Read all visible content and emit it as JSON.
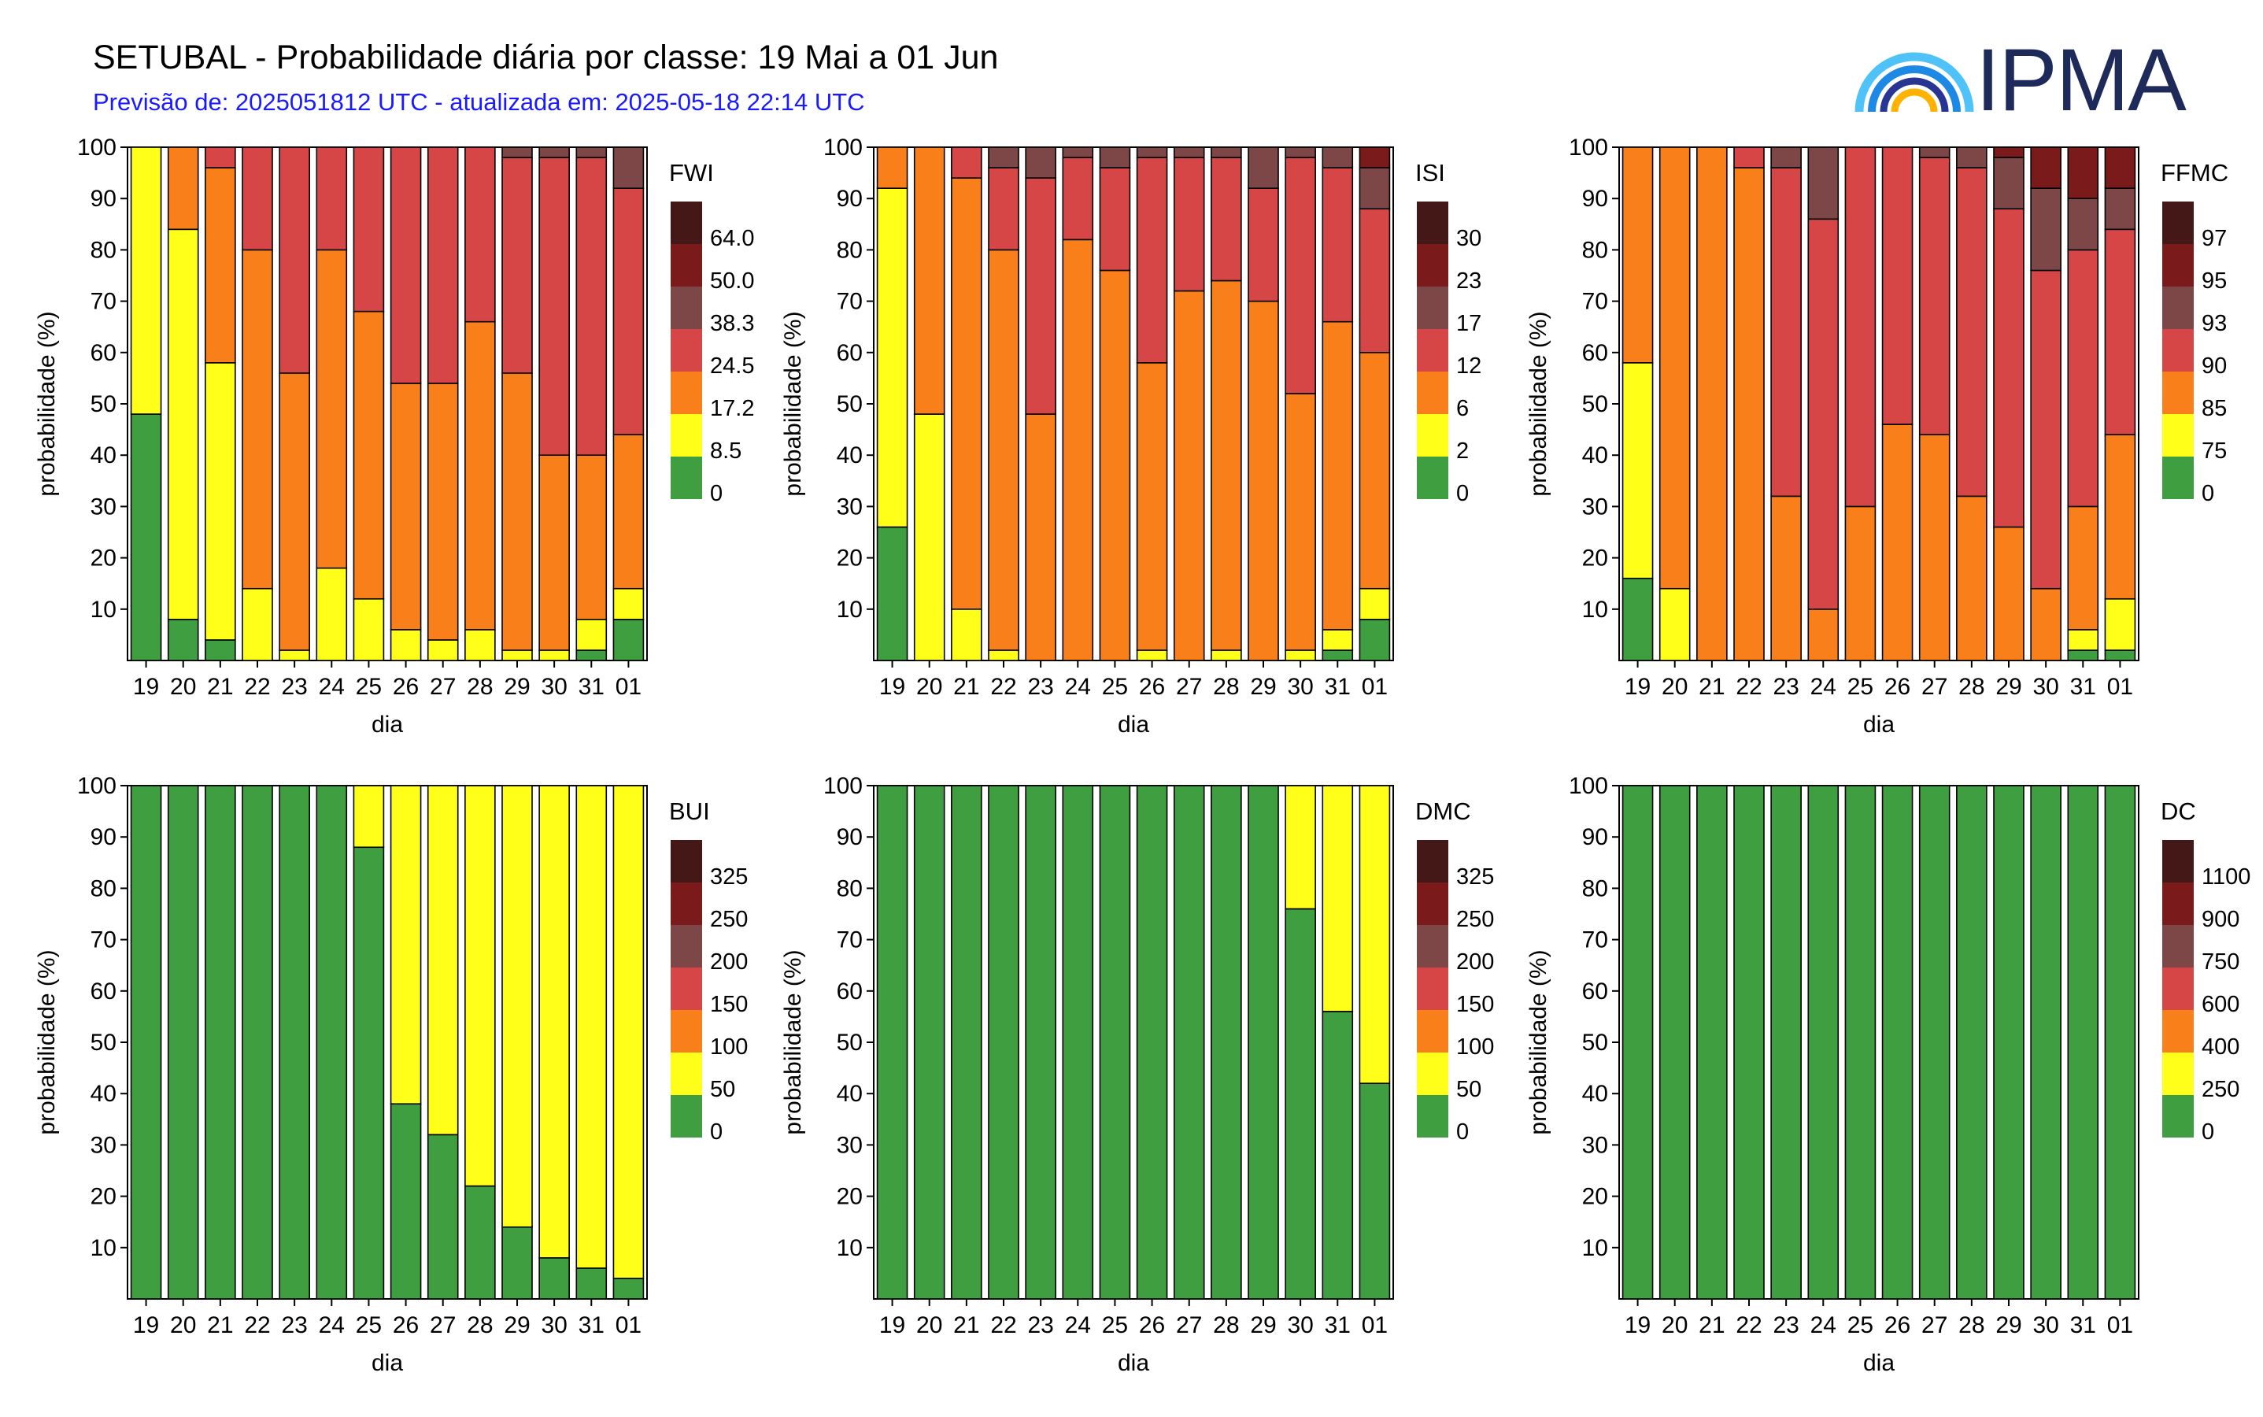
{
  "header": {
    "title": "SETUBAL - Probabilidade diária por classe: 19 Mai a 01 Jun",
    "subtitle": "Previsão de: 2025051812 UTC - atualizada em: 2025-05-18 22:14 UTC",
    "logo_text": "IPMA"
  },
  "colors": {
    "classes": [
      "#3f9e3f",
      "#ffff1a",
      "#f97f1b",
      "#d64646",
      "#7d4747",
      "#7a1a1a",
      "#451818"
    ]
  },
  "chart_data": [
    {
      "type": "bar",
      "stacked": true,
      "index": "FWI",
      "legend_labels": [
        "0",
        "8.5",
        "17.2",
        "24.5",
        "38.3",
        "50.0",
        "64.0"
      ],
      "xlabel": "dia",
      "ylabel": "probabilidade (%)",
      "ylim": [
        0,
        100
      ],
      "yticks": [
        10,
        20,
        30,
        40,
        50,
        60,
        70,
        80,
        90,
        100
      ],
      "categories": [
        "19",
        "20",
        "21",
        "22",
        "23",
        "24",
        "25",
        "26",
        "27",
        "28",
        "29",
        "30",
        "31",
        "01"
      ],
      "cumulative": [
        [
          48,
          100,
          100,
          100,
          100,
          100,
          100
        ],
        [
          8,
          84,
          100,
          100,
          100,
          100,
          100
        ],
        [
          4,
          58,
          96,
          100,
          100,
          100,
          100
        ],
        [
          0,
          14,
          80,
          100,
          100,
          100,
          100
        ],
        [
          0,
          2,
          56,
          100,
          100,
          100,
          100
        ],
        [
          0,
          18,
          80,
          100,
          100,
          100,
          100
        ],
        [
          0,
          12,
          68,
          100,
          100,
          100,
          100
        ],
        [
          0,
          6,
          54,
          100,
          100,
          100,
          100
        ],
        [
          0,
          4,
          54,
          100,
          100,
          100,
          100
        ],
        [
          0,
          6,
          66,
          100,
          100,
          100,
          100
        ],
        [
          0,
          2,
          56,
          98,
          100,
          100,
          100
        ],
        [
          0,
          2,
          40,
          98,
          100,
          100,
          100
        ],
        [
          2,
          8,
          40,
          98,
          100,
          100,
          100
        ],
        [
          8,
          14,
          44,
          92,
          100,
          100,
          100
        ]
      ]
    },
    {
      "type": "bar",
      "stacked": true,
      "index": "ISI",
      "legend_labels": [
        "0",
        "2",
        "6",
        "12",
        "17",
        "23",
        "30"
      ],
      "xlabel": "dia",
      "ylabel": "probabilidade (%)",
      "ylim": [
        0,
        100
      ],
      "yticks": [
        10,
        20,
        30,
        40,
        50,
        60,
        70,
        80,
        90,
        100
      ],
      "categories": [
        "19",
        "20",
        "21",
        "22",
        "23",
        "24",
        "25",
        "26",
        "27",
        "28",
        "29",
        "30",
        "31",
        "01"
      ],
      "cumulative": [
        [
          26,
          92,
          100,
          100,
          100,
          100,
          100
        ],
        [
          0,
          48,
          100,
          100,
          100,
          100,
          100
        ],
        [
          0,
          10,
          94,
          100,
          100,
          100,
          100
        ],
        [
          0,
          2,
          80,
          96,
          100,
          100,
          100
        ],
        [
          0,
          0,
          48,
          94,
          100,
          100,
          100
        ],
        [
          0,
          0,
          82,
          98,
          100,
          100,
          100
        ],
        [
          0,
          0,
          76,
          96,
          100,
          100,
          100
        ],
        [
          0,
          2,
          58,
          98,
          100,
          100,
          100
        ],
        [
          0,
          0,
          72,
          98,
          100,
          100,
          100
        ],
        [
          0,
          2,
          74,
          98,
          100,
          100,
          100
        ],
        [
          0,
          0,
          70,
          92,
          100,
          100,
          100
        ],
        [
          0,
          2,
          52,
          98,
          100,
          100,
          100
        ],
        [
          2,
          6,
          66,
          96,
          100,
          100,
          100
        ],
        [
          8,
          14,
          60,
          88,
          96,
          100,
          100
        ]
      ]
    },
    {
      "type": "bar",
      "stacked": true,
      "index": "FFMC",
      "legend_labels": [
        "0",
        "75",
        "85",
        "90",
        "93",
        "95",
        "97"
      ],
      "xlabel": "dia",
      "ylabel": "probabilidade (%)",
      "ylim": [
        0,
        100
      ],
      "yticks": [
        10,
        20,
        30,
        40,
        50,
        60,
        70,
        80,
        90,
        100
      ],
      "categories": [
        "19",
        "20",
        "21",
        "22",
        "23",
        "24",
        "25",
        "26",
        "27",
        "28",
        "29",
        "30",
        "31",
        "01"
      ],
      "cumulative": [
        [
          16,
          58,
          100,
          100,
          100,
          100,
          100
        ],
        [
          0,
          14,
          100,
          100,
          100,
          100,
          100
        ],
        [
          0,
          0,
          100,
          100,
          100,
          100,
          100
        ],
        [
          0,
          0,
          96,
          100,
          100,
          100,
          100
        ],
        [
          0,
          0,
          32,
          96,
          100,
          100,
          100
        ],
        [
          0,
          0,
          10,
          86,
          100,
          100,
          100
        ],
        [
          0,
          0,
          30,
          100,
          100,
          100,
          100
        ],
        [
          0,
          0,
          46,
          100,
          100,
          100,
          100
        ],
        [
          0,
          0,
          44,
          98,
          100,
          100,
          100
        ],
        [
          0,
          0,
          32,
          96,
          100,
          100,
          100
        ],
        [
          0,
          0,
          26,
          88,
          98,
          100,
          100
        ],
        [
          0,
          0,
          14,
          76,
          92,
          100,
          100
        ],
        [
          2,
          6,
          30,
          80,
          90,
          100,
          100
        ],
        [
          2,
          12,
          44,
          84,
          92,
          100,
          100
        ]
      ]
    },
    {
      "type": "bar",
      "stacked": true,
      "index": "BUI",
      "legend_labels": [
        "0",
        "50",
        "100",
        "150",
        "200",
        "250",
        "325"
      ],
      "xlabel": "dia",
      "ylabel": "probabilidade (%)",
      "ylim": [
        0,
        100
      ],
      "yticks": [
        10,
        20,
        30,
        40,
        50,
        60,
        70,
        80,
        90,
        100
      ],
      "categories": [
        "19",
        "20",
        "21",
        "22",
        "23",
        "24",
        "25",
        "26",
        "27",
        "28",
        "29",
        "30",
        "31",
        "01"
      ],
      "cumulative": [
        [
          100,
          100,
          100,
          100,
          100,
          100,
          100
        ],
        [
          100,
          100,
          100,
          100,
          100,
          100,
          100
        ],
        [
          100,
          100,
          100,
          100,
          100,
          100,
          100
        ],
        [
          100,
          100,
          100,
          100,
          100,
          100,
          100
        ],
        [
          100,
          100,
          100,
          100,
          100,
          100,
          100
        ],
        [
          100,
          100,
          100,
          100,
          100,
          100,
          100
        ],
        [
          88,
          100,
          100,
          100,
          100,
          100,
          100
        ],
        [
          38,
          100,
          100,
          100,
          100,
          100,
          100
        ],
        [
          32,
          100,
          100,
          100,
          100,
          100,
          100
        ],
        [
          22,
          100,
          100,
          100,
          100,
          100,
          100
        ],
        [
          14,
          100,
          100,
          100,
          100,
          100,
          100
        ],
        [
          8,
          100,
          100,
          100,
          100,
          100,
          100
        ],
        [
          6,
          100,
          100,
          100,
          100,
          100,
          100
        ],
        [
          4,
          100,
          100,
          100,
          100,
          100,
          100
        ]
      ]
    },
    {
      "type": "bar",
      "stacked": true,
      "index": "DMC",
      "legend_labels": [
        "0",
        "50",
        "100",
        "150",
        "200",
        "250",
        "325"
      ],
      "xlabel": "dia",
      "ylabel": "probabilidade (%)",
      "ylim": [
        0,
        100
      ],
      "yticks": [
        10,
        20,
        30,
        40,
        50,
        60,
        70,
        80,
        90,
        100
      ],
      "categories": [
        "19",
        "20",
        "21",
        "22",
        "23",
        "24",
        "25",
        "26",
        "27",
        "28",
        "29",
        "30",
        "31",
        "01"
      ],
      "cumulative": [
        [
          100,
          100,
          100,
          100,
          100,
          100,
          100
        ],
        [
          100,
          100,
          100,
          100,
          100,
          100,
          100
        ],
        [
          100,
          100,
          100,
          100,
          100,
          100,
          100
        ],
        [
          100,
          100,
          100,
          100,
          100,
          100,
          100
        ],
        [
          100,
          100,
          100,
          100,
          100,
          100,
          100
        ],
        [
          100,
          100,
          100,
          100,
          100,
          100,
          100
        ],
        [
          100,
          100,
          100,
          100,
          100,
          100,
          100
        ],
        [
          100,
          100,
          100,
          100,
          100,
          100,
          100
        ],
        [
          100,
          100,
          100,
          100,
          100,
          100,
          100
        ],
        [
          100,
          100,
          100,
          100,
          100,
          100,
          100
        ],
        [
          100,
          100,
          100,
          100,
          100,
          100,
          100
        ],
        [
          76,
          100,
          100,
          100,
          100,
          100,
          100
        ],
        [
          56,
          100,
          100,
          100,
          100,
          100,
          100
        ],
        [
          42,
          100,
          100,
          100,
          100,
          100,
          100
        ]
      ]
    },
    {
      "type": "bar",
      "stacked": true,
      "index": "DC",
      "legend_labels": [
        "0",
        "250",
        "400",
        "600",
        "750",
        "900",
        "1100"
      ],
      "xlabel": "dia",
      "ylabel": "probabilidade (%)",
      "ylim": [
        0,
        100
      ],
      "yticks": [
        10,
        20,
        30,
        40,
        50,
        60,
        70,
        80,
        90,
        100
      ],
      "categories": [
        "19",
        "20",
        "21",
        "22",
        "23",
        "24",
        "25",
        "26",
        "27",
        "28",
        "29",
        "30",
        "31",
        "01"
      ],
      "cumulative": [
        [
          100,
          100,
          100,
          100,
          100,
          100,
          100
        ],
        [
          100,
          100,
          100,
          100,
          100,
          100,
          100
        ],
        [
          100,
          100,
          100,
          100,
          100,
          100,
          100
        ],
        [
          100,
          100,
          100,
          100,
          100,
          100,
          100
        ],
        [
          100,
          100,
          100,
          100,
          100,
          100,
          100
        ],
        [
          100,
          100,
          100,
          100,
          100,
          100,
          100
        ],
        [
          100,
          100,
          100,
          100,
          100,
          100,
          100
        ],
        [
          100,
          100,
          100,
          100,
          100,
          100,
          100
        ],
        [
          100,
          100,
          100,
          100,
          100,
          100,
          100
        ],
        [
          100,
          100,
          100,
          100,
          100,
          100,
          100
        ],
        [
          100,
          100,
          100,
          100,
          100,
          100,
          100
        ],
        [
          100,
          100,
          100,
          100,
          100,
          100,
          100
        ],
        [
          100,
          100,
          100,
          100,
          100,
          100,
          100
        ],
        [
          100,
          100,
          100,
          100,
          100,
          100,
          100
        ]
      ]
    }
  ]
}
